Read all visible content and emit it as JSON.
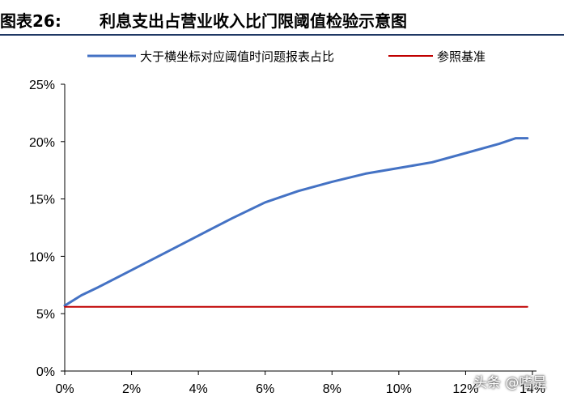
{
  "title": {
    "prefix": "图表26:",
    "text": "利息支出占营业收入比门限阈值检验示意图"
  },
  "watermark": "头条 @嗜是",
  "colors": {
    "series_blue": "#4472c4",
    "series_red": "#c00000",
    "title_rule": "#1f3864"
  },
  "chart_data": {
    "type": "line",
    "title": "利息支出占营业收入比门限阈值检验示意图",
    "xlabel": "",
    "ylabel": "",
    "xlim": [
      0,
      0.14
    ],
    "ylim": [
      0,
      0.25
    ],
    "x_ticks": [
      "0%",
      "2%",
      "4%",
      "6%",
      "8%",
      "10%",
      "12%",
      "14%"
    ],
    "y_ticks": [
      "0%",
      "5%",
      "10%",
      "15%",
      "20%",
      "25%"
    ],
    "legend_position": "top",
    "grid": false,
    "series": [
      {
        "name": "大于横坐标对应阈值时问题报表占比",
        "color": "#4472c4",
        "x": [
          0,
          0.005,
          0.01,
          0.02,
          0.03,
          0.04,
          0.05,
          0.06,
          0.07,
          0.08,
          0.09,
          0.1,
          0.11,
          0.12,
          0.13,
          0.135,
          0.1385
        ],
        "y": [
          0.057,
          0.066,
          0.073,
          0.088,
          0.103,
          0.118,
          0.133,
          0.147,
          0.157,
          0.165,
          0.172,
          0.177,
          0.182,
          0.19,
          0.198,
          0.203,
          0.203
        ]
      },
      {
        "name": "参照基准",
        "color": "#c00000",
        "x": [
          0,
          0.1385
        ],
        "y": [
          0.056,
          0.056
        ]
      }
    ]
  }
}
